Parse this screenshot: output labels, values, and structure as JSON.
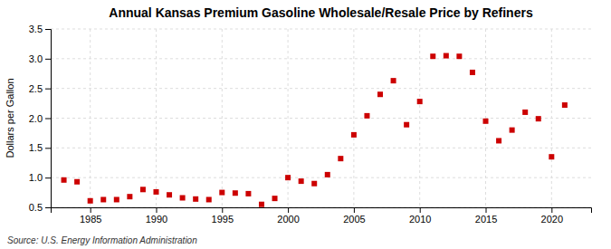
{
  "chart_data": {
    "type": "scatter",
    "title": "Annual Kansas Premium Gasoline Wholesale/Resale Price by Refiners",
    "ylabel": "Dollars per Gallon",
    "annotations": [
      "Source: U.S. Energy Information Administration"
    ],
    "x": [
      1983,
      1984,
      1985,
      1986,
      1987,
      1988,
      1989,
      1990,
      1991,
      1992,
      1993,
      1994,
      1995,
      1996,
      1997,
      1998,
      1999,
      2000,
      2001,
      2002,
      2003,
      2004,
      2005,
      2006,
      2007,
      2008,
      2009,
      2010,
      2011,
      2012,
      2013,
      2014,
      2015,
      2016,
      2017,
      2018,
      2019,
      2020,
      2021
    ],
    "values": [
      0.96,
      0.93,
      0.61,
      0.63,
      0.63,
      0.68,
      0.8,
      0.76,
      0.71,
      0.66,
      0.64,
      0.63,
      0.75,
      0.74,
      0.73,
      0.55,
      0.65,
      1.0,
      0.94,
      0.9,
      1.05,
      1.32,
      1.72,
      2.04,
      2.4,
      2.63,
      1.89,
      2.28,
      3.04,
      3.05,
      3.04,
      2.77,
      1.95,
      1.62,
      1.8,
      2.1,
      1.99,
      1.35,
      2.22
    ],
    "color": "#cc0000",
    "marker": "square",
    "xlim": [
      1982,
      2023
    ],
    "ylim": [
      0.5,
      3.5
    ],
    "xticks": [
      1985,
      1990,
      1995,
      2000,
      2005,
      2010,
      2015,
      2020
    ],
    "yticks": [
      0.5,
      {
        "value": 1.0,
        "label": "1.0"
      },
      1.5,
      {
        "value": 2.0,
        "label": "2.0"
      },
      2.5,
      {
        "value": 3.0,
        "label": "3.0"
      },
      3.5
    ],
    "grid": true
  }
}
